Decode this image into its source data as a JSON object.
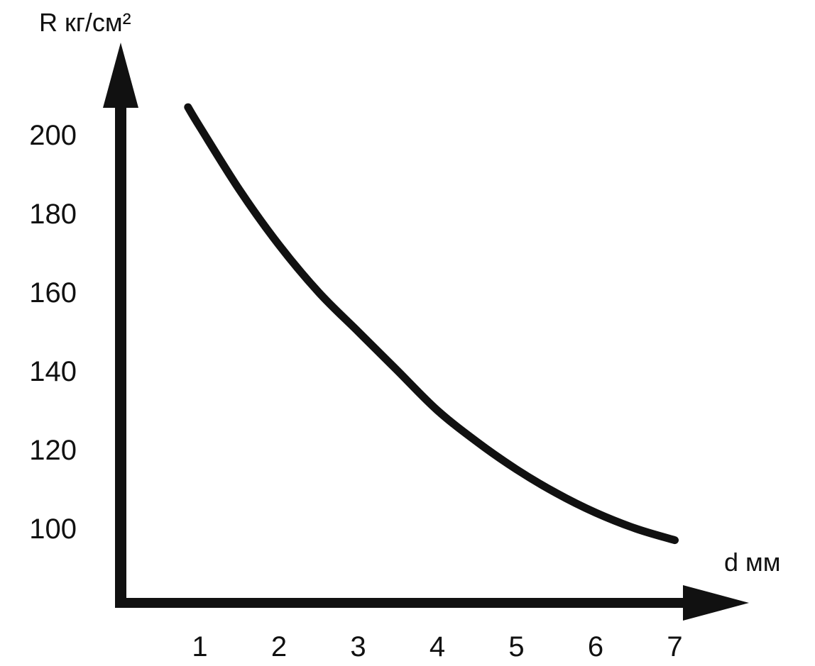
{
  "chart_data": {
    "type": "line",
    "title": "",
    "ylabel": "R кг/см²",
    "xlabel": "d мм",
    "x_ticks": [
      1,
      2,
      3,
      4,
      5,
      6,
      7
    ],
    "y_ticks": [
      100,
      120,
      140,
      160,
      180,
      200
    ],
    "xlim": [
      0,
      7.8
    ],
    "ylim": [
      85,
      218
    ],
    "grid": false,
    "legend": "none",
    "series": [
      {
        "x": [
          0.85,
          1.0,
          1.5,
          2.0,
          2.5,
          3.0,
          3.5,
          4.0,
          4.5,
          5.0,
          5.5,
          6.0,
          6.5,
          7.0
        ],
        "values": [
          207,
          202,
          186,
          172,
          160,
          150,
          140,
          130,
          122,
          115,
          109,
          104,
          100,
          97
        ]
      }
    ],
    "colors": {
      "ink": "#111111",
      "background": "#ffffff"
    }
  }
}
